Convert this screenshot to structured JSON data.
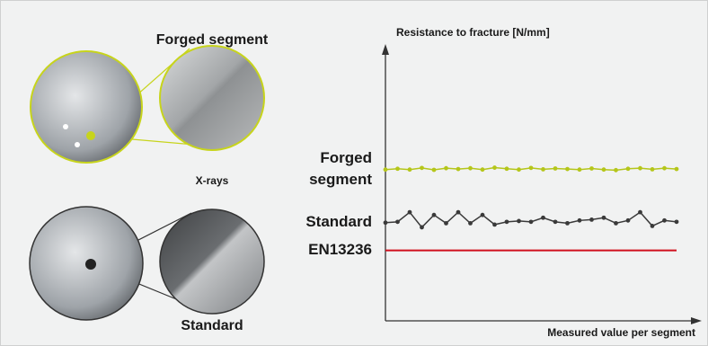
{
  "labels": {
    "forged": "Forged segment",
    "xrays": "X-rays",
    "standard": "Standard"
  },
  "chart_data": {
    "type": "line",
    "y_label": "Resistance to fracture [N/mm]",
    "x_label": "Measured value per segment",
    "ylim": [
      0,
      100
    ],
    "categories": [
      null,
      null,
      null,
      null,
      null,
      null,
      null,
      null,
      null,
      null,
      null,
      null,
      null,
      null,
      null,
      null,
      null,
      null,
      null,
      null,
      null,
      null,
      null,
      null,
      null
    ],
    "series": [
      {
        "name": "Forged segment",
        "color": "#b5c61a",
        "markers": true,
        "values": [
          55,
          55.3,
          55,
          55.6,
          54.9,
          55.5,
          55.2,
          55.5,
          55,
          55.7,
          55.3,
          55,
          55.6,
          55.1,
          55.4,
          55.2,
          55,
          55.4,
          55,
          54.8,
          55.3,
          55.5,
          55.1,
          55.5,
          55.2
        ]
      },
      {
        "name": "Standard",
        "color": "#3a3a3a",
        "markers": true,
        "values": [
          35.7,
          36,
          39.5,
          34,
          38.5,
          35.5,
          39.5,
          35.5,
          38.5,
          35,
          36,
          36.3,
          36,
          37.5,
          36,
          35.5,
          36.5,
          36.8,
          37.5,
          35.5,
          36.5,
          39.5,
          34.5,
          36.5,
          36
        ]
      },
      {
        "name": "EN13236",
        "color": "#d0101e",
        "markers": false,
        "values": [
          25.6,
          25.6,
          25.6,
          25.6,
          25.6,
          25.6,
          25.6,
          25.6,
          25.6,
          25.6,
          25.6,
          25.6,
          25.6,
          25.6,
          25.6,
          25.6,
          25.6,
          25.6,
          25.6,
          25.6,
          25.6,
          25.6,
          25.6,
          25.6,
          25.6
        ]
      }
    ]
  }
}
